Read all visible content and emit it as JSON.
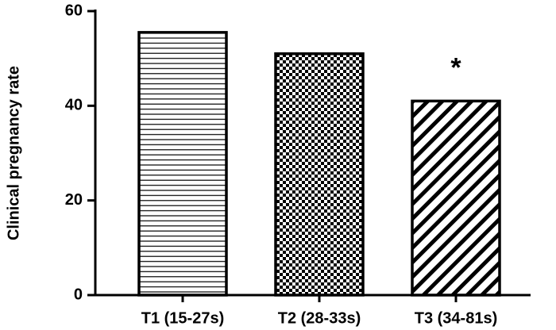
{
  "chart_data": {
    "type": "bar",
    "y_label": "Clinical pregnancy rate",
    "categories": [
      "T1 (15-27s)",
      "T2 (28-33s)",
      "T3 (34-81s)"
    ],
    "values": [
      55.5,
      51,
      41
    ],
    "color": "#000000",
    "patterns": [
      "horizontal",
      "checker",
      "diagonal"
    ],
    "ylim": [
      0,
      60
    ],
    "yticks": [
      0,
      20,
      40,
      60
    ],
    "grid": false,
    "annotations": [
      {
        "text": "*",
        "category": "T3 (34-81s)"
      }
    ]
  }
}
